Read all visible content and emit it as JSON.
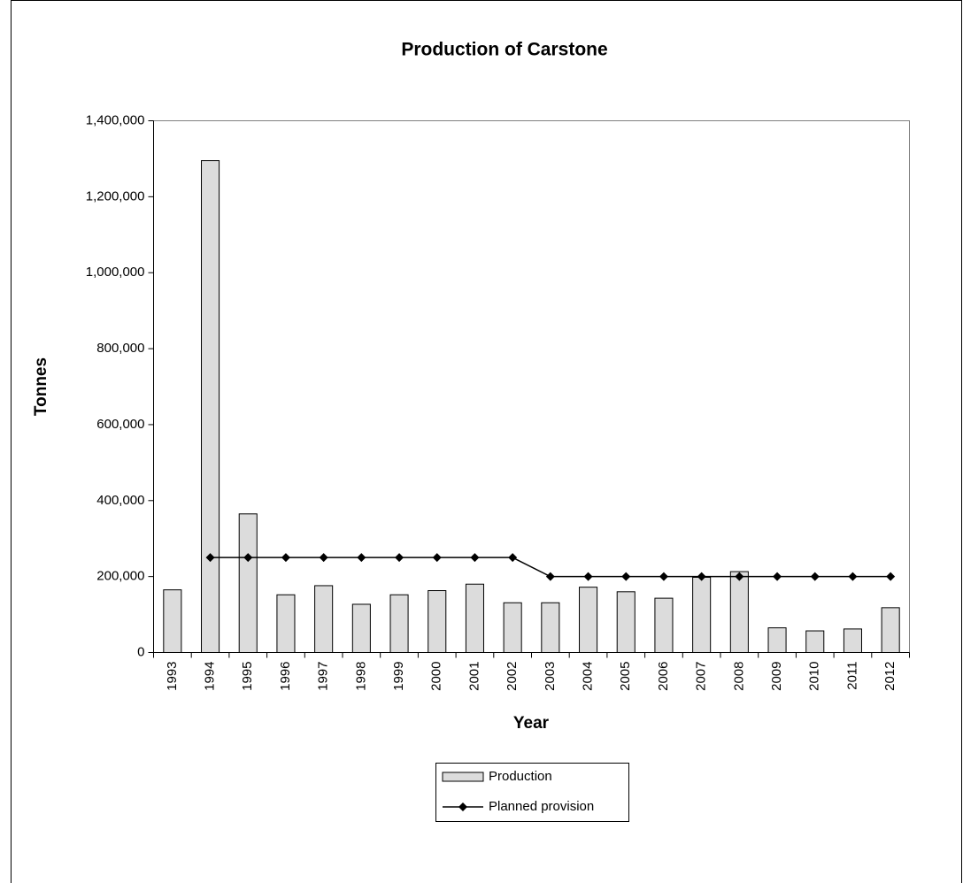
{
  "chart_data": {
    "type": "bar",
    "title": "Production of Carstone",
    "x_label": "Year",
    "y_label": "Tonnes",
    "categories": [
      "1993",
      "1994",
      "1995",
      "1996",
      "1997",
      "1998",
      "1999",
      "2000",
      "2001",
      "2002",
      "2003",
      "2004",
      "2005",
      "2006",
      "2007",
      "2008",
      "2009",
      "2010",
      "2011",
      "2012"
    ],
    "series": [
      {
        "name": "Production",
        "type": "bar",
        "color": "#dcdcdc",
        "values": [
          165000,
          1295000,
          365000,
          152000,
          176000,
          127000,
          152000,
          163000,
          180000,
          131000,
          131000,
          172000,
          160000,
          143000,
          198000,
          213000,
          65000,
          57000,
          62000,
          118000
        ]
      },
      {
        "name": "Planned provision",
        "type": "line",
        "color": "#000000",
        "values": [
          null,
          250000,
          250000,
          250000,
          250000,
          250000,
          250000,
          250000,
          250000,
          250000,
          200000,
          200000,
          200000,
          200000,
          200000,
          200000,
          200000,
          200000,
          200000,
          200000
        ]
      }
    ],
    "ylim": [
      0,
      1400000
    ],
    "yticks": [
      0,
      {
        "value": 200000,
        "label": "200,000"
      },
      {
        "value": 400000,
        "label": "400,000"
      },
      {
        "value": 600000,
        "label": "600,000"
      },
      {
        "value": 800000,
        "label": "800,000"
      },
      {
        "value": 1000000,
        "label": "1,000,000"
      },
      {
        "value": 1200000,
        "label": "1,200,000"
      },
      {
        "value": 1400000,
        "label": "1,400,000"
      }
    ],
    "grid": false,
    "legend": "bottom"
  }
}
